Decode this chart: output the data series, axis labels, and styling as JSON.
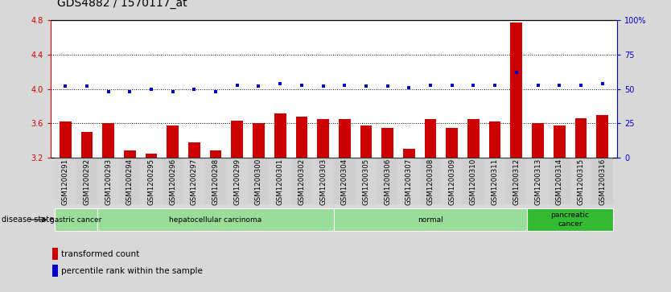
{
  "title": "GDS4882 / 1570117_at",
  "categories": [
    "GSM1200291",
    "GSM1200292",
    "GSM1200293",
    "GSM1200294",
    "GSM1200295",
    "GSM1200296",
    "GSM1200297",
    "GSM1200298",
    "GSM1200299",
    "GSM1200300",
    "GSM1200301",
    "GSM1200302",
    "GSM1200303",
    "GSM1200304",
    "GSM1200305",
    "GSM1200306",
    "GSM1200307",
    "GSM1200308",
    "GSM1200309",
    "GSM1200310",
    "GSM1200311",
    "GSM1200312",
    "GSM1200313",
    "GSM1200314",
    "GSM1200315",
    "GSM1200316"
  ],
  "bar_values": [
    3.62,
    3.5,
    3.6,
    3.28,
    3.25,
    3.58,
    3.38,
    3.28,
    3.63,
    3.6,
    3.72,
    3.68,
    3.65,
    3.65,
    3.58,
    3.55,
    3.3,
    3.65,
    3.55,
    3.65,
    3.62,
    4.78,
    3.6,
    3.58,
    3.66,
    3.7
  ],
  "percentile_values": [
    52,
    52,
    48,
    48,
    50,
    48,
    50,
    48,
    53,
    52,
    54,
    53,
    52,
    53,
    52,
    52,
    51,
    53,
    53,
    53,
    53,
    62,
    53,
    53,
    53,
    54
  ],
  "bar_color": "#cc0000",
  "dot_color": "#0000cc",
  "ylim_left": [
    3.2,
    4.8
  ],
  "ylim_right": [
    0,
    100
  ],
  "yticks_left": [
    3.2,
    3.6,
    4.0,
    4.4,
    4.8
  ],
  "yticks_right": [
    0,
    25,
    50,
    75,
    100
  ],
  "ytick_labels_left": [
    "3.2",
    "3.6",
    "4.0",
    "4.4",
    "4.8"
  ],
  "ytick_labels_right": [
    "0",
    "25",
    "50",
    "75",
    "100%"
  ],
  "hlines": [
    3.6,
    4.0,
    4.4
  ],
  "groups": [
    {
      "label": "gastric cancer",
      "start": 0,
      "end": 2,
      "color": "#99dd99"
    },
    {
      "label": "hepatocellular carcinoma",
      "start": 2,
      "end": 13,
      "color": "#99dd99"
    },
    {
      "label": "normal",
      "start": 13,
      "end": 22,
      "color": "#99dd99"
    },
    {
      "label": "pancreatic\ncancer",
      "start": 22,
      "end": 26,
      "color": "#33bb33"
    }
  ],
  "background_color": "#d8d8d8",
  "plot_bg_color": "#ffffff",
  "title_fontsize": 10,
  "tick_fontsize": 7,
  "bar_width": 0.55
}
